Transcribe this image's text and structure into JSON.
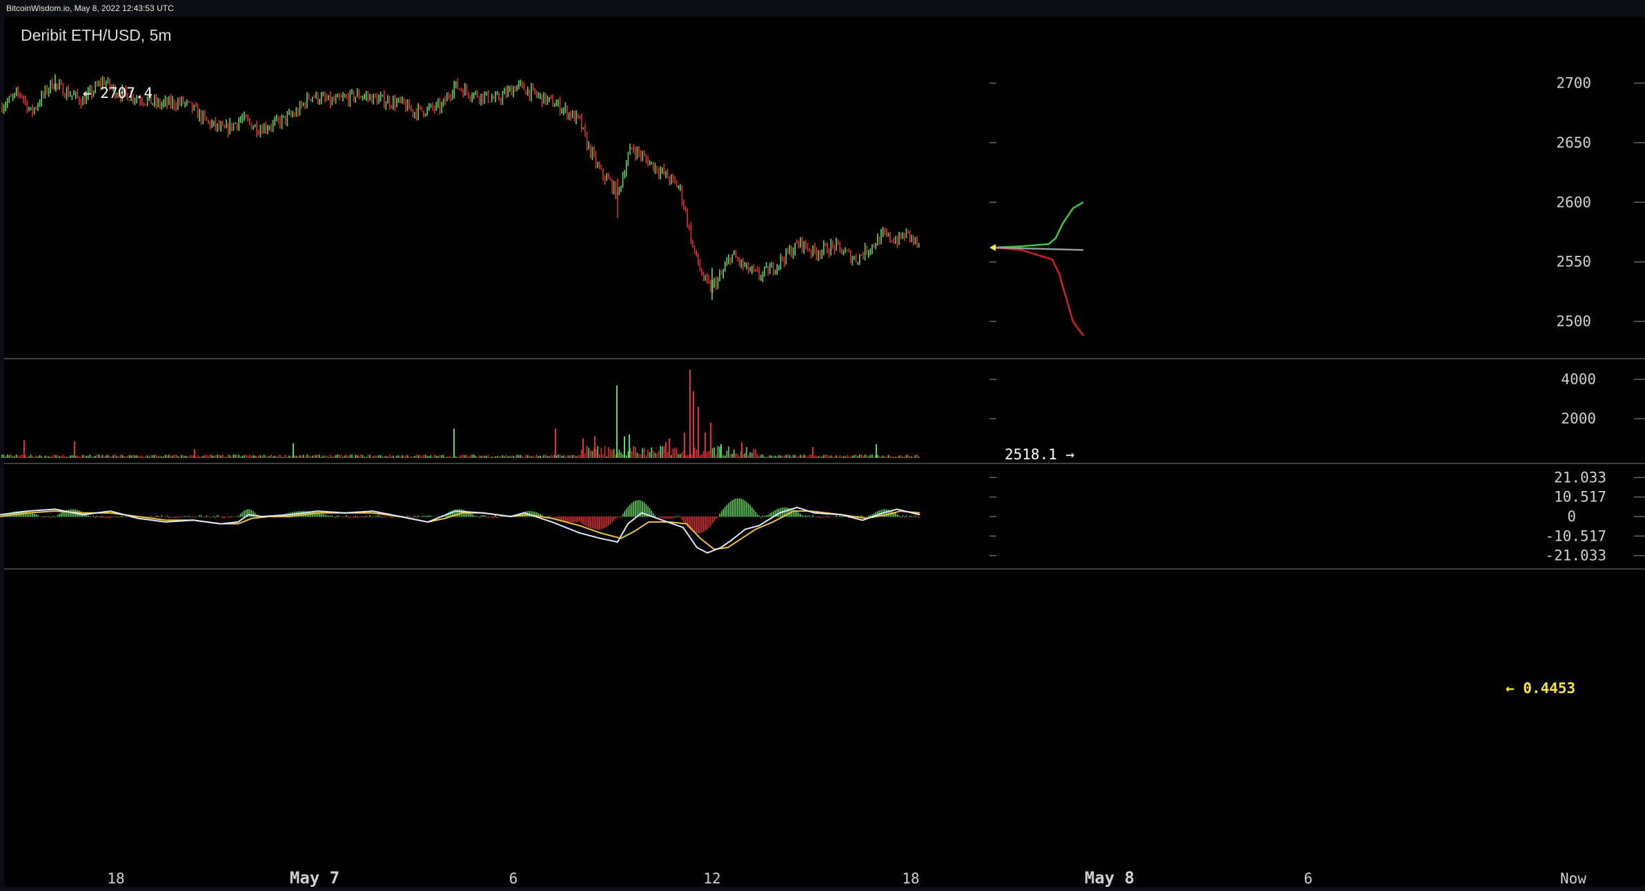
{
  "header": {
    "source_timestamp": "BitcoinWisdom.io, May 8, 2022 12:43:53 UTC"
  },
  "chart_data": {
    "type": "candlestick",
    "title": "Deribit ETH/USD, 5m",
    "x_tick_labels": [
      "18",
      "May 7",
      "6",
      "12",
      "18",
      "May 8",
      "6",
      "Now"
    ],
    "price_panel": {
      "y_ticks": [
        2700,
        2650,
        2600,
        2550,
        2500
      ],
      "ylim": [
        2470,
        2735
      ],
      "high_annotation": {
        "label": "← 2707.4",
        "value": 2707.4
      },
      "low_annotation": {
        "label": "2518.1 →",
        "value": 2518.1
      },
      "last_price": 2562,
      "close_path": [
        [
          0,
          2680
        ],
        [
          30,
          2692
        ],
        [
          45,
          2675
        ],
        [
          75,
          2700
        ],
        [
          95,
          2693
        ],
        [
          120,
          2685
        ],
        [
          150,
          2702
        ],
        [
          170,
          2692
        ],
        [
          200,
          2688
        ],
        [
          230,
          2682
        ],
        [
          265,
          2684
        ],
        [
          280,
          2678
        ],
        [
          300,
          2667
        ],
        [
          325,
          2660
        ],
        [
          350,
          2670
        ],
        [
          375,
          2662
        ],
        [
          400,
          2666
        ],
        [
          430,
          2675
        ],
        [
          450,
          2690
        ],
        [
          480,
          2684
        ],
        [
          520,
          2690
        ],
        [
          550,
          2686
        ],
        [
          580,
          2683
        ],
        [
          600,
          2676
        ],
        [
          640,
          2680
        ],
        [
          658,
          2698
        ],
        [
          680,
          2692
        ],
        [
          720,
          2686
        ],
        [
          750,
          2698
        ],
        [
          780,
          2689
        ],
        [
          810,
          2681
        ],
        [
          840,
          2668
        ],
        [
          850,
          2650
        ],
        [
          870,
          2625
        ],
        [
          885,
          2616
        ],
        [
          895,
          2605
        ],
        [
          905,
          2628
        ],
        [
          915,
          2646
        ],
        [
          940,
          2634
        ],
        [
          960,
          2625
        ],
        [
          985,
          2612
        ],
        [
          995,
          2588
        ],
        [
          1005,
          2560
        ],
        [
          1020,
          2535
        ],
        [
          1030,
          2528
        ],
        [
          1045,
          2538
        ],
        [
          1060,
          2556
        ],
        [
          1080,
          2545
        ],
        [
          1100,
          2538
        ],
        [
          1120,
          2545
        ],
        [
          1140,
          2556
        ],
        [
          1160,
          2566
        ],
        [
          1180,
          2558
        ],
        [
          1210,
          2563
        ],
        [
          1240,
          2552
        ],
        [
          1260,
          2562
        ],
        [
          1280,
          2572
        ],
        [
          1300,
          2568
        ],
        [
          1315,
          2574
        ],
        [
          1333,
          2562
        ]
      ],
      "depth_bids": [
        [
          0,
          2562
        ],
        [
          40,
          2563
        ],
        [
          80,
          2565
        ],
        [
          90,
          2570
        ],
        [
          100,
          2582
        ],
        [
          115,
          2595
        ],
        [
          130,
          2600
        ]
      ],
      "depth_asks": [
        [
          0,
          2562
        ],
        [
          40,
          2560
        ],
        [
          85,
          2552
        ],
        [
          95,
          2540
        ],
        [
          105,
          2520
        ],
        [
          115,
          2500
        ],
        [
          130,
          2488
        ]
      ],
      "depth_mid": [
        [
          0,
          2562
        ],
        [
          130,
          2560
        ]
      ]
    },
    "volume_panel": {
      "y_ticks": [
        4000,
        2000
      ],
      "ylim": [
        0,
        4500
      ],
      "last_value_label": "← 0.4453",
      "spikes": [
        [
          35,
          900
        ],
        [
          108,
          850
        ],
        [
          282,
          450
        ],
        [
          425,
          750
        ],
        [
          658,
          1500
        ],
        [
          805,
          1500
        ],
        [
          845,
          1000
        ],
        [
          862,
          1100
        ],
        [
          894,
          3700
        ],
        [
          905,
          1100
        ],
        [
          912,
          1200
        ],
        [
          965,
          800
        ],
        [
          970,
          1000
        ],
        [
          992,
          1300
        ],
        [
          1000,
          4500
        ],
        [
          1005,
          3400
        ],
        [
          1012,
          2600
        ],
        [
          1022,
          1300
        ],
        [
          1030,
          1800
        ],
        [
          1045,
          700
        ],
        [
          1075,
          800
        ],
        [
          1178,
          550
        ],
        [
          1270,
          700
        ]
      ]
    },
    "macd_panel": {
      "y_ticks": [
        "21.033",
        "10.517",
        "0",
        "-10.517",
        "-21.033"
      ],
      "ylim": [
        -25,
        25
      ],
      "hist_humps": [
        [
          0,
          60,
          3
        ],
        [
          80,
          130,
          4
        ],
        [
          345,
          375,
          4
        ],
        [
          400,
          480,
          3
        ],
        [
          640,
          690,
          4
        ],
        [
          745,
          790,
          3
        ],
        [
          800,
          860,
          -3
        ],
        [
          840,
          895,
          -7
        ],
        [
          900,
          950,
          9
        ],
        [
          950,
          985,
          -1
        ],
        [
          985,
          1040,
          -9
        ],
        [
          1040,
          1100,
          10
        ],
        [
          1110,
          1165,
          5
        ],
        [
          1260,
          1305,
          4
        ]
      ],
      "macd_path": [
        [
          0,
          1
        ],
        [
          40,
          3
        ],
        [
          80,
          4
        ],
        [
          120,
          1
        ],
        [
          160,
          3
        ],
        [
          200,
          -1
        ],
        [
          240,
          -3
        ],
        [
          280,
          -2
        ],
        [
          320,
          -4
        ],
        [
          345,
          -3
        ],
        [
          360,
          1
        ],
        [
          380,
          0
        ],
        [
          420,
          1
        ],
        [
          460,
          3
        ],
        [
          500,
          2
        ],
        [
          540,
          3
        ],
        [
          580,
          0
        ],
        [
          620,
          -3
        ],
        [
          640,
          0
        ],
        [
          660,
          3
        ],
        [
          700,
          2
        ],
        [
          740,
          0
        ],
        [
          760,
          2
        ],
        [
          800,
          -3
        ],
        [
          840,
          -9
        ],
        [
          870,
          -12
        ],
        [
          895,
          -14
        ],
        [
          910,
          -4
        ],
        [
          930,
          2
        ],
        [
          960,
          -2
        ],
        [
          990,
          -6
        ],
        [
          1010,
          -17
        ],
        [
          1025,
          -20
        ],
        [
          1045,
          -17
        ],
        [
          1060,
          -13
        ],
        [
          1080,
          -7
        ],
        [
          1100,
          -5
        ],
        [
          1130,
          2
        ],
        [
          1155,
          5
        ],
        [
          1180,
          2
        ],
        [
          1220,
          1
        ],
        [
          1250,
          -2
        ],
        [
          1280,
          2
        ],
        [
          1300,
          4
        ],
        [
          1333,
          1
        ]
      ],
      "signal_path": [
        [
          0,
          0
        ],
        [
          40,
          2
        ],
        [
          80,
          3
        ],
        [
          120,
          2
        ],
        [
          160,
          2
        ],
        [
          200,
          0
        ],
        [
          240,
          -2
        ],
        [
          280,
          -2
        ],
        [
          320,
          -4
        ],
        [
          345,
          -4
        ],
        [
          365,
          -1
        ],
        [
          390,
          0
        ],
        [
          420,
          0
        ],
        [
          460,
          2
        ],
        [
          500,
          2
        ],
        [
          540,
          2
        ],
        [
          580,
          0
        ],
        [
          620,
          -3
        ],
        [
          645,
          -1
        ],
        [
          670,
          2
        ],
        [
          700,
          2
        ],
        [
          740,
          0
        ],
        [
          765,
          1
        ],
        [
          800,
          -1
        ],
        [
          840,
          -5
        ],
        [
          870,
          -9
        ],
        [
          900,
          -12
        ],
        [
          920,
          -8
        ],
        [
          940,
          -3
        ],
        [
          970,
          -3
        ],
        [
          995,
          -4
        ],
        [
          1015,
          -12
        ],
        [
          1035,
          -18
        ],
        [
          1055,
          -17
        ],
        [
          1075,
          -12
        ],
        [
          1095,
          -7
        ],
        [
          1120,
          -3
        ],
        [
          1150,
          3
        ],
        [
          1175,
          3
        ],
        [
          1220,
          1
        ],
        [
          1255,
          -1
        ],
        [
          1285,
          1
        ],
        [
          1305,
          3
        ],
        [
          1333,
          2
        ]
      ]
    }
  }
}
